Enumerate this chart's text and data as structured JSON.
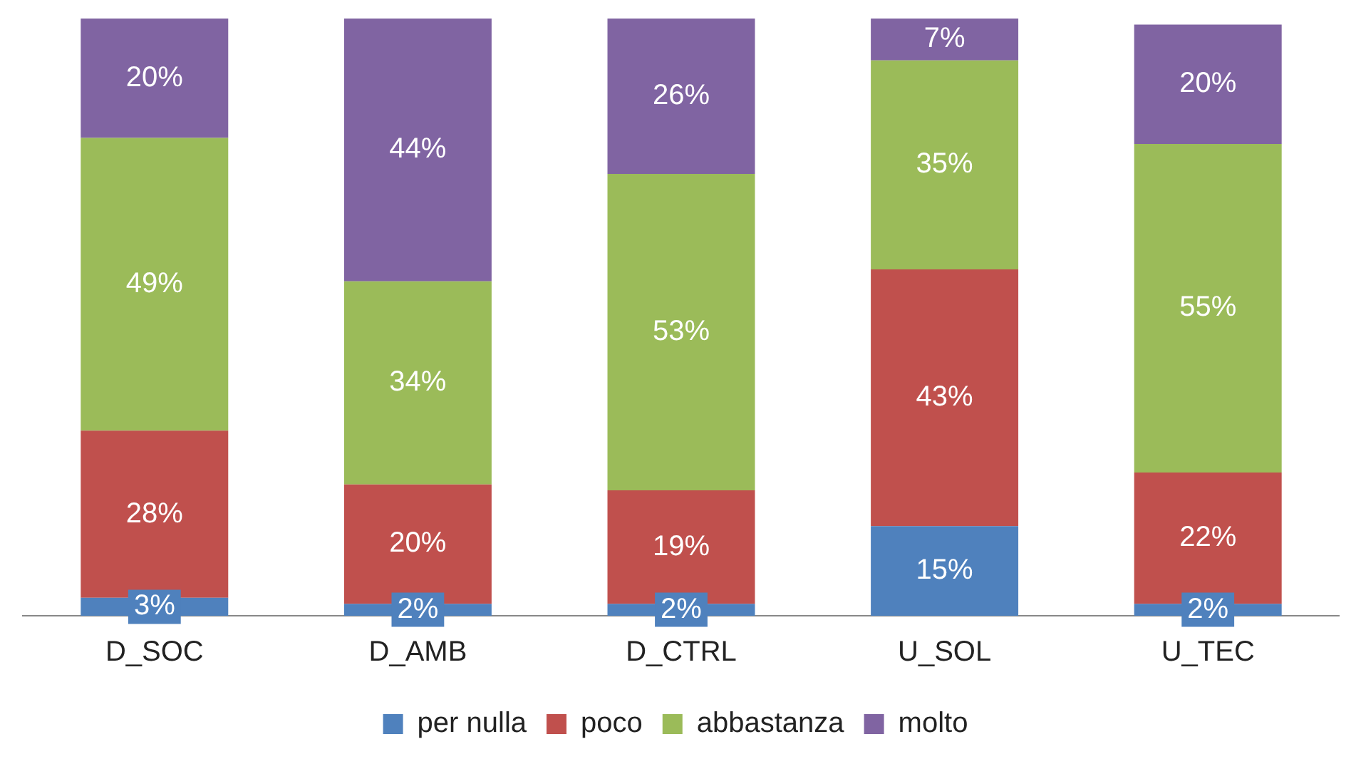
{
  "chart_data": {
    "type": "bar",
    "stacked": true,
    "categories": [
      "D_SOC",
      "D_AMB",
      "D_CTRL",
      "U_SOL",
      "U_TEC"
    ],
    "ylim": [
      0,
      100
    ],
    "legend": "bottom",
    "grid": false,
    "tick_labels": "x",
    "series": [
      {
        "name": "per nulla",
        "color": "#4f81bd",
        "values": [
          3,
          2,
          2,
          15,
          2
        ],
        "value_labels": [
          "3%",
          "2%",
          "2%",
          "15%",
          "2%"
        ]
      },
      {
        "name": "poco",
        "color": "#c0504d",
        "values": [
          28,
          20,
          19,
          43,
          22
        ],
        "value_labels": [
          "28%",
          "20%",
          "19%",
          "43%",
          "22%"
        ]
      },
      {
        "name": "abbastanza",
        "color": "#9bbb59",
        "values": [
          49,
          34,
          53,
          35,
          55
        ],
        "value_labels": [
          "49%",
          "34%",
          "53%",
          "35%",
          "55%"
        ]
      },
      {
        "name": "molto",
        "color": "#8064a2",
        "values": [
          20,
          44,
          26,
          7,
          20
        ],
        "value_labels": [
          "20%",
          "44%",
          "26%",
          "7%",
          "20%"
        ]
      }
    ]
  }
}
